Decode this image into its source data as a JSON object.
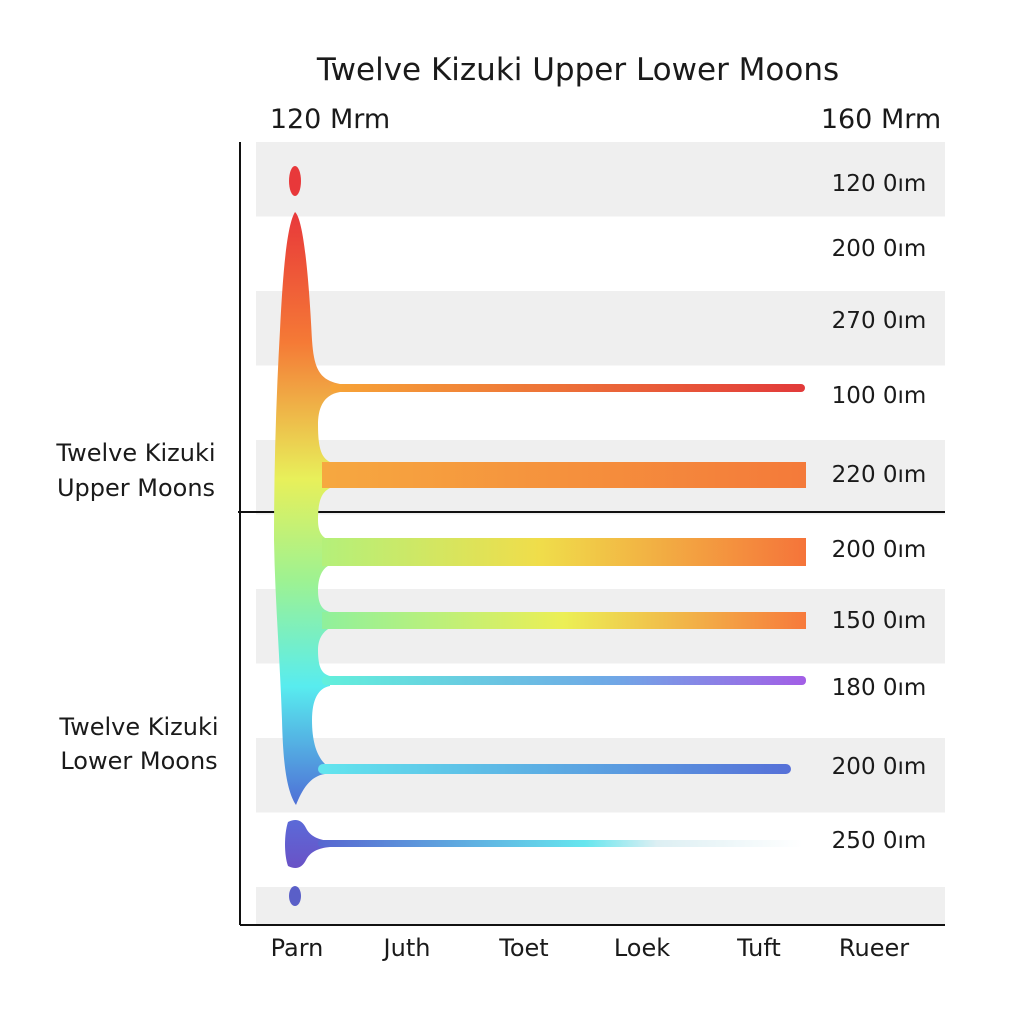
{
  "chart_data": {
    "type": "area",
    "title": "Twelve Kizuki Upper Lower Moons",
    "top_left_label": "120 Mrm",
    "top_right_label": "160 Mrm",
    "x_ticks": [
      "Parn",
      "Juth",
      "Toet",
      "Loek",
      "Tuft",
      "Rueer"
    ],
    "groups": [
      "Twelve Kizuki\nUpper Moons",
      "Twelve Kizuki\nLower Moons"
    ],
    "rows": [
      {
        "label": "120 0ım",
        "extent": 0,
        "shaded": true
      },
      {
        "label": "200 0ım",
        "extent": 0,
        "shaded": false
      },
      {
        "label": "270 0ım",
        "extent": 0,
        "shaded": true
      },
      {
        "label": "100 0ım",
        "extent": 0.91,
        "shaded": false
      },
      {
        "label": "220 0ım",
        "extent": 0.91,
        "shaded": true
      },
      {
        "label": "200 0ım",
        "extent": 0.91,
        "shaded": false
      },
      {
        "label": "150 0ım",
        "extent": 0.91,
        "shaded": true
      },
      {
        "label": "180 0ım",
        "extent": 0.91,
        "shaded": false
      },
      {
        "label": "200 0ım",
        "extent": 0.89,
        "shaded": true
      },
      {
        "label": "250 0ım",
        "extent": 0.85,
        "shaded": false
      }
    ],
    "colors": {
      "red": "#e8383a",
      "orange": "#f5753a",
      "yellow": "#e6ee55",
      "green": "#b6f17a",
      "cyan": "#5ef2e8",
      "blue": "#4f7fe0",
      "violet": "#9a5ee8",
      "indigo": "#5a5fc8",
      "band": "#efefef"
    }
  }
}
